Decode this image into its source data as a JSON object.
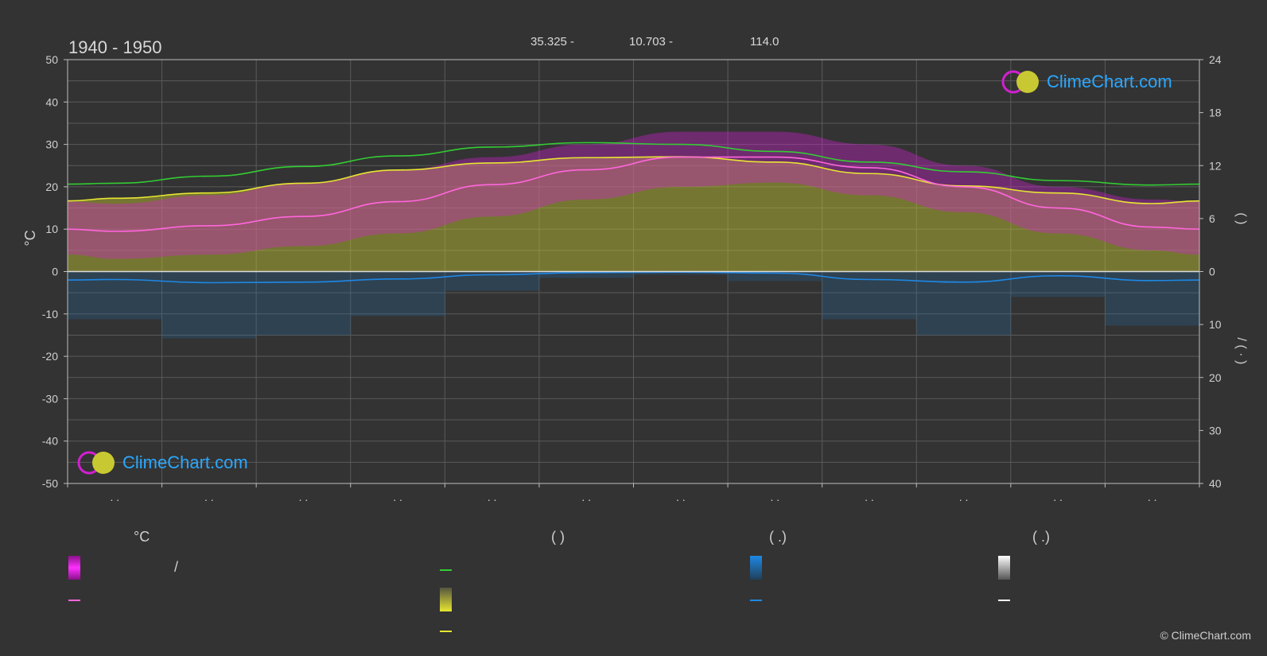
{
  "header": {
    "period": "1940 - 1950",
    "lat": "35.325 -",
    "lon": "10.703 -",
    "elev": "114.0"
  },
  "logo": {
    "text": "ClimeChart.com"
  },
  "copyright": "© ClimeChart.com",
  "colors": {
    "background": "#333333",
    "grid": "#5a5a5a",
    "sunshine_band": "#c8c832",
    "daylight_line": "#33cc33",
    "sunshine_line": "#e6e632",
    "temp_band": "#d020d0",
    "temp_mean_line": "#ff66dd",
    "rain_band": "#1f6fb0",
    "rain_line": "#1e88e5",
    "snow_line": "#ffffff"
  },
  "legend": {
    "col1_head": "°C",
    "col2_head": "(          )",
    "col3_head": "(    .)",
    "col4_head": "(    .)",
    "slash": "/"
  },
  "chart_data": {
    "type": "area",
    "months": 12,
    "x_tick_labels": [
      ". .",
      ". .",
      ". .",
      ". .",
      ". .",
      ". .",
      ". .",
      ". .",
      ". .",
      ". .",
      ". .",
      ". ."
    ],
    "y_left": {
      "label": "°C",
      "ticks": [
        50,
        40,
        30,
        20,
        10,
        0,
        -10,
        -20,
        -30,
        -40,
        -50
      ],
      "range": [
        -50,
        50
      ]
    },
    "y_right_top": {
      "label": "(  )",
      "ticks": [
        24,
        18,
        12,
        6,
        0
      ],
      "range": [
        0,
        24
      ]
    },
    "y_right_bottom": {
      "label": "/   (  ·  )",
      "ticks": [
        0,
        10,
        20,
        30,
        40
      ],
      "range": [
        0,
        40
      ]
    },
    "series": [
      {
        "key": "daylight_hours",
        "unit": "h",
        "values": [
          10.0,
          10.8,
          11.9,
          13.1,
          14.1,
          14.6,
          14.4,
          13.6,
          12.4,
          11.3,
          10.3,
          9.8
        ]
      },
      {
        "key": "sunshine_hours",
        "unit": "h",
        "values": [
          8.3,
          8.9,
          10.0,
          11.5,
          12.3,
          12.9,
          13.0,
          12.4,
          11.1,
          9.7,
          8.9,
          7.7
        ]
      },
      {
        "key": "temp_mean",
        "unit": "°C",
        "values": [
          9.5,
          10.8,
          13.0,
          16.5,
          20.5,
          24.0,
          27.0,
          27.0,
          24.5,
          20.0,
          15.0,
          10.5
        ]
      },
      {
        "key": "temp_band_max",
        "unit": "°C",
        "values": [
          16,
          18,
          21,
          24,
          27,
          30,
          33,
          33,
          30,
          25,
          20,
          17
        ]
      },
      {
        "key": "temp_band_min",
        "unit": "°C",
        "values": [
          3,
          4,
          6,
          9,
          13,
          17,
          20,
          21,
          18,
          14,
          9,
          5
        ]
      },
      {
        "key": "precipitation_mm",
        "unit": "mm",
        "values": [
          1.5,
          2.1,
          2.0,
          1.4,
          0.6,
          0.2,
          0.1,
          0.3,
          1.5,
          2.0,
          0.8,
          1.7
        ]
      },
      {
        "key": "snow_mm",
        "unit": "mm",
        "values": [
          0,
          0,
          0,
          0,
          0,
          0,
          0,
          0,
          0,
          0,
          0,
          0
        ]
      }
    ],
    "grid": true
  }
}
